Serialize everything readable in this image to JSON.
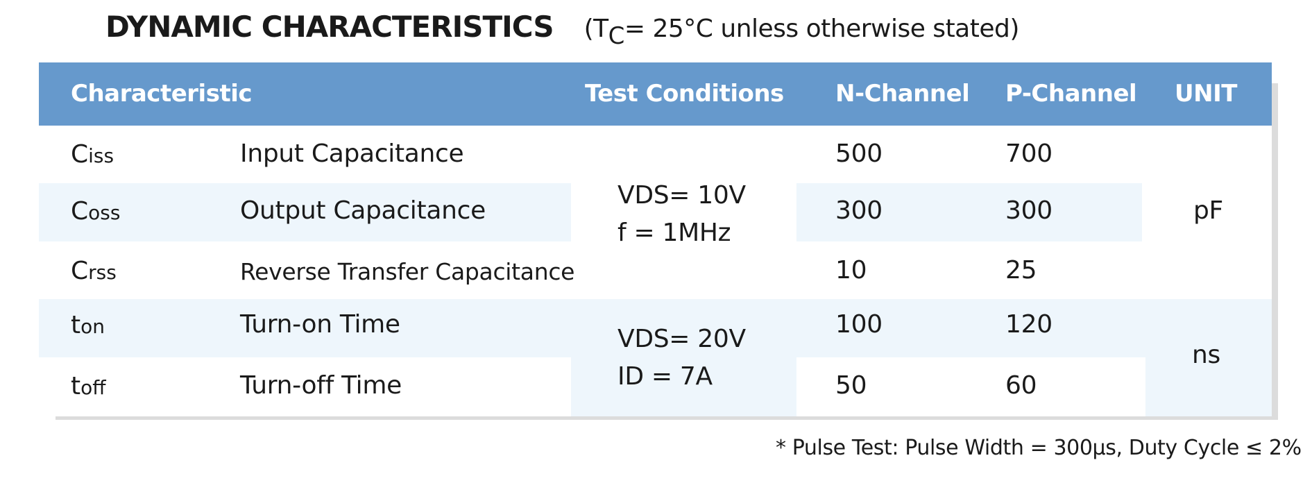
{
  "title": "DYNAMIC CHARACTERISTICS",
  "subtitle": {
    "prefix": "(T",
    "sub": "C",
    "suffix": "= 25°C unless otherwise stated)"
  },
  "headers": {
    "characteristic": "Characteristic",
    "test_conditions": "Test Conditions",
    "n_channel": "N-Channel",
    "p_channel": "P-Channel",
    "unit": "UNIT"
  },
  "rows": [
    {
      "sym": "C",
      "sub": "iss",
      "name": "Input Capacitance",
      "n": "500",
      "p": "700"
    },
    {
      "sym": "C",
      "sub": "oss",
      "name": "Output Capacitance",
      "n": "300",
      "p": "300"
    },
    {
      "sym": "C",
      "sub": "rss",
      "name": "Reverse Transfer Capacitance",
      "n": "10",
      "p": "25"
    },
    {
      "sym": "t",
      "sub": "on",
      "name": "Turn-on Time",
      "n": "100",
      "p": "120"
    },
    {
      "sym": "t",
      "sub": "off",
      "name": "Turn-off Time",
      "n": "50",
      "p": "60"
    }
  ],
  "conditions": [
    {
      "line1": "VDS= 10V",
      "line2": "f = 1MHz"
    },
    {
      "line1": "VDS= 20V",
      "line2": "ID = 7A"
    }
  ],
  "units": [
    "pF",
    "ns"
  ],
  "footnote": "* Pulse Test: Pulse Width = 300µs, Duty Cycle ≤ 2%"
}
